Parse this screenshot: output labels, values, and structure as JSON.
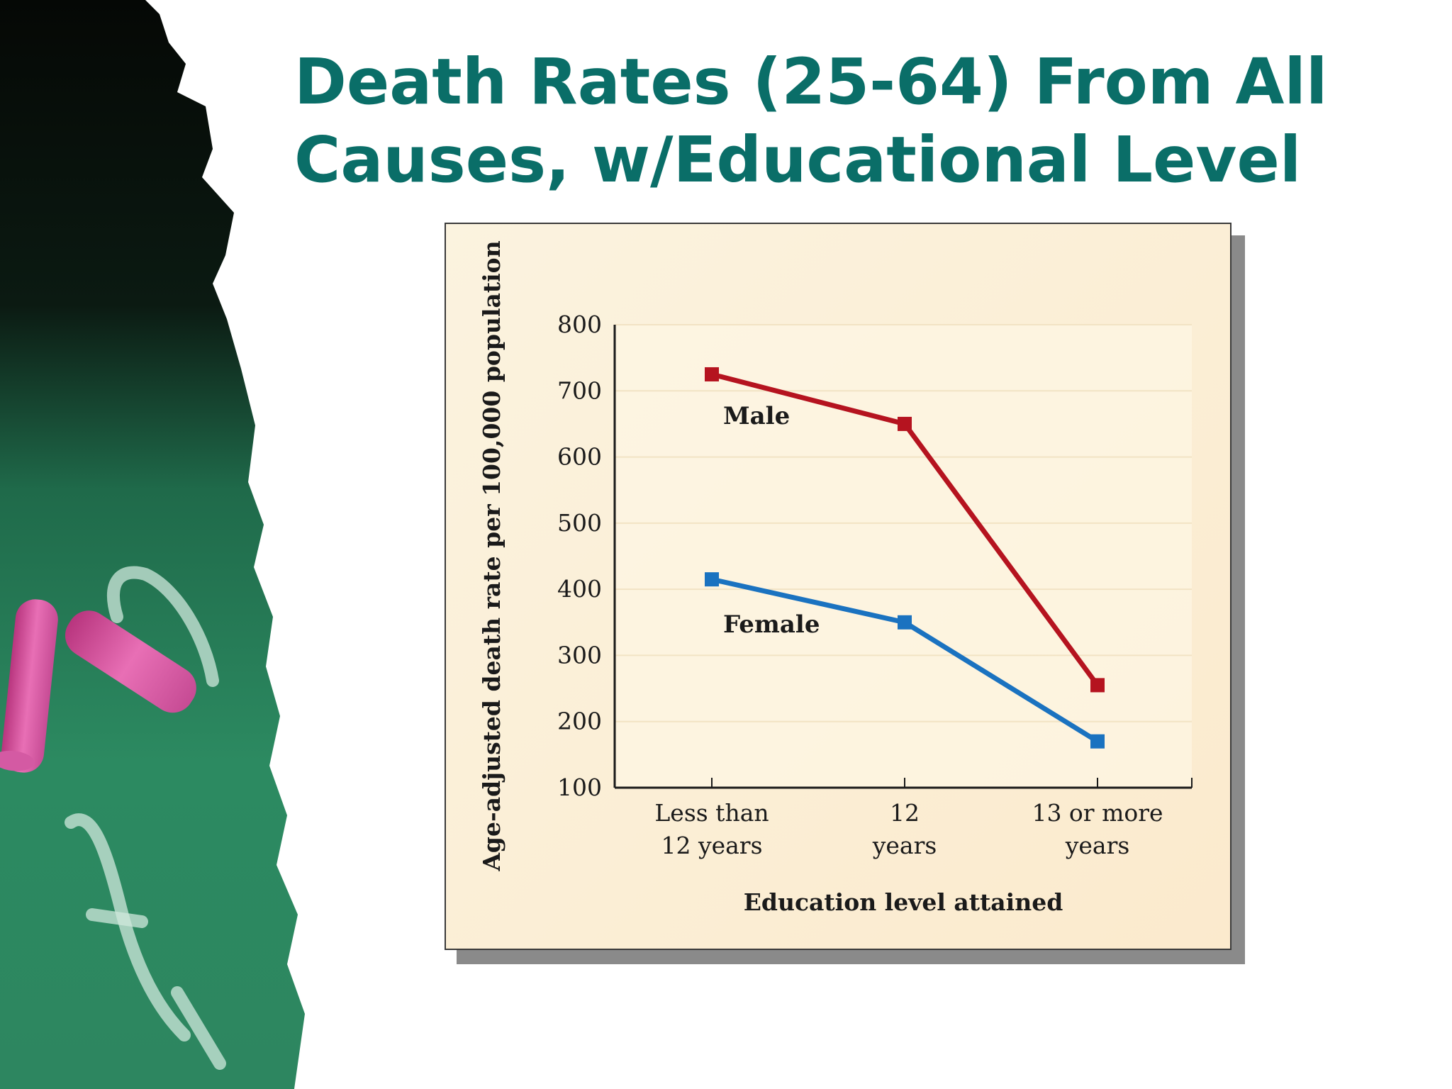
{
  "slide": {
    "title_lines": [
      "Death Rates (25-64) From All",
      "Causes, w/Educational Level"
    ]
  },
  "colors": {
    "title": "#0a6e68",
    "male": "#b5131f",
    "female": "#1a72c0",
    "panel_bg": "#fbf0d8",
    "grid": "#f2e3c4"
  },
  "chart_data": {
    "type": "line",
    "title": "",
    "xlabel": "Education level attained",
    "ylabel": "Age-adjusted death rate per 100,000 population",
    "categories": [
      [
        "Less than",
        "12 years"
      ],
      [
        "12",
        "years"
      ],
      [
        "13 or more",
        "years"
      ]
    ],
    "ylim": [
      100,
      800
    ],
    "yticks": [
      100,
      200,
      300,
      400,
      500,
      600,
      700,
      800
    ],
    "grid": true,
    "series": [
      {
        "name": "Male",
        "color_key": "male",
        "values": [
          725,
          650,
          255
        ]
      },
      {
        "name": "Female",
        "color_key": "female",
        "values": [
          415,
          350,
          170
        ]
      }
    ]
  }
}
